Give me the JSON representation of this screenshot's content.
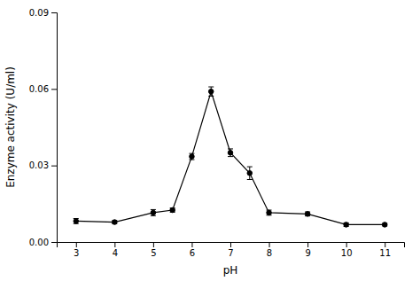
{
  "chart_data": {
    "type": "line",
    "x": [
      3,
      4,
      5,
      5.5,
      6,
      6.5,
      7,
      7.5,
      8,
      9,
      10,
      11
    ],
    "values": [
      0.0082,
      0.0078,
      0.0115,
      0.0125,
      0.0335,
      0.059,
      0.035,
      0.027,
      0.0115,
      0.011,
      0.0068,
      0.0068
    ],
    "yerr": [
      0.001,
      0.0006,
      0.0012,
      0.0008,
      0.0012,
      0.0018,
      0.0015,
      0.0025,
      0.001,
      0.0008,
      0.0007,
      0.0005
    ],
    "xlabel": "pH",
    "ylabel": "Enzyme activity (U/ml)",
    "xlim": [
      2.5,
      11.5
    ],
    "ylim": [
      0.0,
      0.09
    ],
    "xticks": [
      3,
      4,
      5,
      6,
      7,
      8,
      9,
      10,
      11
    ],
    "yticks": [
      {
        "value": 0.0,
        "label": "0.00"
      },
      {
        "value": 0.03,
        "label": "0.03"
      },
      {
        "value": 0.06,
        "label": "0.06"
      },
      {
        "value": 0.09,
        "label": "0.09"
      }
    ],
    "color": "black",
    "marker": "circle",
    "grid": false
  }
}
